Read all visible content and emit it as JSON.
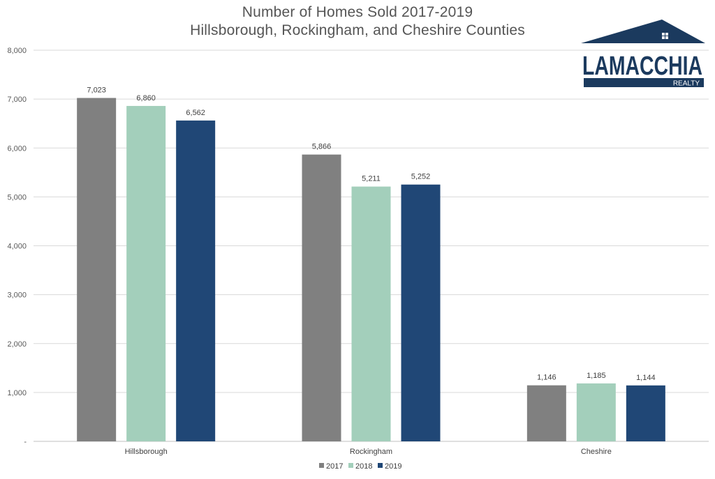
{
  "chart_data": {
    "type": "bar",
    "title": [
      "Number of Homes Sold 2017-2019",
      "Hillsborough, Rockingham, and Cheshire Counties"
    ],
    "categories": [
      "Hillsborough",
      "Rockingham",
      "Cheshire"
    ],
    "series": [
      {
        "name": "2017",
        "color": "#808080",
        "values": [
          7023,
          5866,
          1146
        ]
      },
      {
        "name": "2018",
        "color": "#a3cfbb",
        "values": [
          6860,
          5211,
          1185
        ]
      },
      {
        "name": "2019",
        "color": "#204776",
        "values": [
          6562,
          5252,
          1144
        ]
      }
    ],
    "data_labels": [
      [
        "7,023",
        "5,866",
        "1,146"
      ],
      [
        "6,860",
        "5,211",
        "1,185"
      ],
      [
        "6,562",
        "5,252",
        "1,144"
      ]
    ],
    "ylim": [
      0,
      8000
    ],
    "y_ticks": [
      0,
      1000,
      2000,
      3000,
      4000,
      5000,
      6000,
      7000,
      8000
    ],
    "y_tick_labels": [
      "-",
      "1,000",
      "2,000",
      "3,000",
      "4,000",
      "5,000",
      "6,000",
      "7,000",
      "8,000"
    ],
    "xlabel": "",
    "ylabel": "",
    "grid": true,
    "legend_position": "bottom"
  },
  "logo": {
    "name": "LAMACCHIA",
    "tagline": "REALTY",
    "color": "#1b3a5e"
  }
}
